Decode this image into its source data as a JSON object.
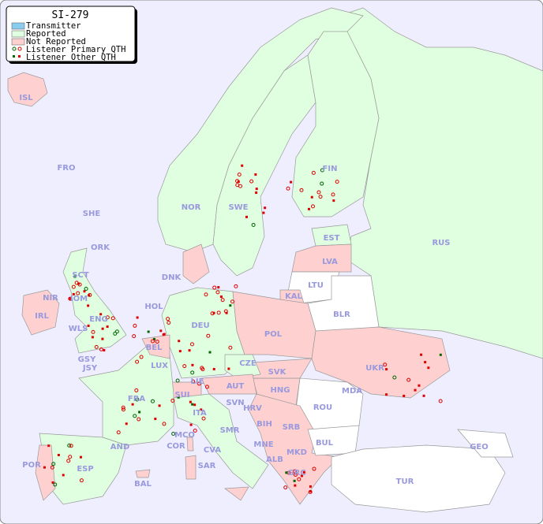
{
  "legend": {
    "title": "SI-279",
    "items": [
      {
        "label": "Transmitter",
        "color": "#88ccee"
      },
      {
        "label": "Reported",
        "color": "#e0ffe0"
      },
      {
        "label": "Not Reported",
        "color": "#ffd0d0"
      },
      {
        "label": "Listener Primary QTH",
        "color": "#dd0000"
      },
      {
        "label": "Listener Other QTH",
        "color": "#dd0000"
      }
    ]
  },
  "colors": {
    "sea": "#eeeeff",
    "reported": "#e0ffe0",
    "not_reported": "#ffd0d0",
    "no_data": "#ffffff",
    "label": "#9999dd",
    "listener": "#dd0000",
    "listener_alt": "#006600"
  },
  "countries": {
    "ISL": "ISL",
    "FRO": "FRO",
    "SHE": "SHE",
    "ORK": "ORK",
    "NOR": "NOR",
    "SWE": "SWE",
    "FIN": "FIN",
    "EST": "EST",
    "LVA": "LVA",
    "LTU": "LTU",
    "RUS": "RUS",
    "KAL": "KAL",
    "BLR": "BLR",
    "DNK": "DNK",
    "HOL": "HOL",
    "IRL": "IRL",
    "SCT": "SCT",
    "IOM": "IOM",
    "NIR": "NIR",
    "WLS": "WLS",
    "ENG": "ENG",
    "GSY": "GSY",
    "JSY": "JSY",
    "BEL": "BEL",
    "LUX": "LUX",
    "DEU": "DEU",
    "POL": "POL",
    "CZE": "CZE",
    "SVK": "SVK",
    "UKR": "UKR",
    "MDA": "MDA",
    "HNG": "HNG",
    "AUT": "AUT",
    "LIE": "LIE",
    "SUI": "SUI",
    "FRA": "FRA",
    "SVN": "SVN",
    "HRV": "HRV",
    "BIH": "BIH",
    "SRB": "SRB",
    "ROU": "ROU",
    "BUL": "BUL",
    "MNE": "MNE",
    "ALB": "ALB",
    "MKD": "MKD",
    "GRC": "GRC",
    "TUR": "TUR",
    "GEO": "GEO",
    "ITA": "ITA",
    "SMR": "SMR",
    "MCO": "MCO",
    "COR": "COR",
    "CVA": "CVA",
    "SAR": "SAR",
    "AND": "AND",
    "ESP": "ESP",
    "POR": "POR",
    "BAL": "BAL"
  }
}
